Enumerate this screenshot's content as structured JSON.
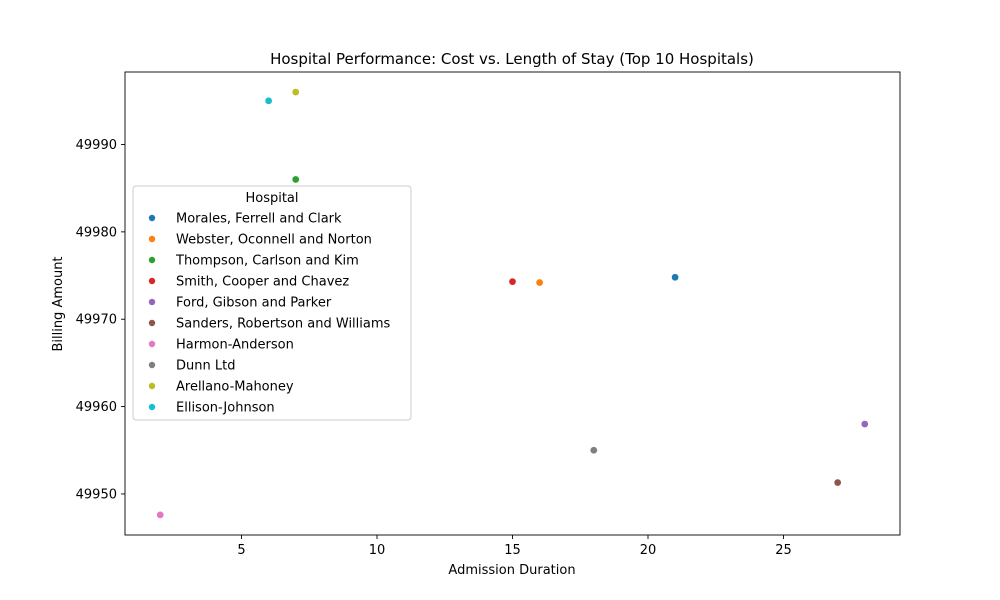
{
  "chart_data": {
    "type": "scatter",
    "title": "Hospital Performance: Cost vs. Length of Stay (Top 10 Hospitals)",
    "xlabel": "Admission Duration",
    "ylabel": "Billing Amount",
    "xlim": [
      0.7,
      29.3
    ],
    "ylim": [
      49945.3,
      49998.3
    ],
    "xticks": [
      5,
      10,
      15,
      20,
      25
    ],
    "yticks": [
      49950,
      49960,
      49970,
      49980,
      49990
    ],
    "grid": false,
    "legend": {
      "title": "Hospital",
      "placement": "center-left"
    },
    "series": [
      {
        "name": "Morales, Ferrell and Clark",
        "color": "#1f77b4",
        "points": [
          [
            21,
            49974.8
          ]
        ]
      },
      {
        "name": "Webster, Oconnell and Norton",
        "color": "#ff7f0e",
        "points": [
          [
            16,
            49974.2
          ]
        ]
      },
      {
        "name": "Thompson, Carlson and Kim",
        "color": "#2ca02c",
        "points": [
          [
            7,
            49986.0
          ]
        ]
      },
      {
        "name": "Smith, Cooper and Chavez",
        "color": "#d62728",
        "points": [
          [
            15,
            49974.3
          ]
        ]
      },
      {
        "name": "Ford, Gibson and Parker",
        "color": "#9467bd",
        "points": [
          [
            28,
            49958.0
          ]
        ]
      },
      {
        "name": "Sanders, Robertson and Williams",
        "color": "#8c564b",
        "points": [
          [
            27,
            49951.3
          ]
        ]
      },
      {
        "name": "Harmon-Anderson",
        "color": "#e377c2",
        "points": [
          [
            2,
            49947.6
          ]
        ]
      },
      {
        "name": "Dunn Ltd",
        "color": "#7f7f7f",
        "points": [
          [
            18,
            49955.0
          ]
        ]
      },
      {
        "name": "Arellano-Mahoney",
        "color": "#bcbd22",
        "points": [
          [
            7,
            49996.0
          ]
        ]
      },
      {
        "name": "Ellison-Johnson",
        "color": "#17becf",
        "points": [
          [
            6,
            49995.0
          ]
        ]
      }
    ]
  }
}
